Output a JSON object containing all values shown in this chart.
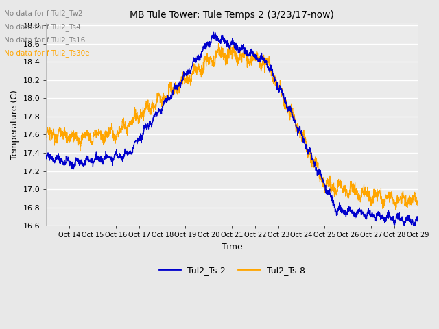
{
  "title": "MB Tule Tower: Tule Temps 2 (3/23/17-now)",
  "xlabel": "Time",
  "ylabel": "Temperature (C)",
  "ylim": [
    16.6,
    18.82
  ],
  "yticks": [
    16.6,
    16.8,
    17.0,
    17.2,
    17.4,
    17.6,
    17.8,
    18.0,
    18.2,
    18.4,
    18.6,
    18.8
  ],
  "xtick_labels": [
    "Oct 14",
    "Oct 15",
    "Oct 16",
    "Oct 17",
    "Oct 18",
    "Oct 19",
    "Oct 20",
    "Oct 21",
    "Oct 22",
    "Oct 23",
    "Oct 24",
    "Oct 25",
    "Oct 26",
    "Oct 27",
    "Oct 28",
    "Oct 29"
  ],
  "line1_color": "#0000cc",
  "line2_color": "#ffa500",
  "line1_label": "Tul2_Ts-2",
  "line2_label": "Tul2_Ts-8",
  "no_data_texts": [
    "No data for f Tul2_Tw2",
    "No data for f Tul2_Ts4",
    "No data for f Tul2_Ts16",
    "No data for f Tul2_Ts30e"
  ],
  "no_data_colors": [
    "#808080",
    "#808080",
    "#808080",
    "#ffa500"
  ],
  "background_color": "#e8e8e8",
  "plot_bg_color": "#ebebeb",
  "grid_color": "#ffffff"
}
